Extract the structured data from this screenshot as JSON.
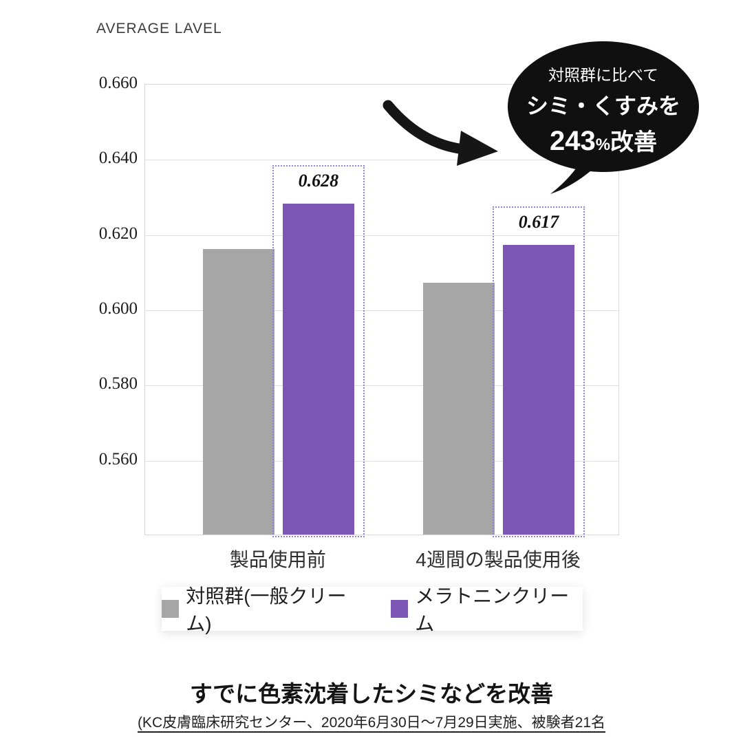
{
  "header": {
    "average_label": "AVERAGE LAVEL"
  },
  "chart_data": {
    "type": "bar",
    "title": "AVERAGE LAVEL",
    "categories": [
      "製品使用前",
      "4週間の製品使用後"
    ],
    "series": [
      {
        "name": "対照群(一般クリーム)",
        "color": "#a6a6a6",
        "values": [
          0.616,
          0.607
        ],
        "data_labels": [
          "",
          ""
        ],
        "highlighted": false
      },
      {
        "name": "メラトニンクリーム",
        "color": "#7d55b4",
        "values": [
          0.628,
          0.617
        ],
        "data_labels": [
          "0.628",
          "0.617"
        ],
        "highlighted": true
      }
    ],
    "yticks": [
      "0.660",
      "0.640",
      "0.620",
      "0.600",
      "0.580",
      "0.560"
    ],
    "ytick_values": [
      0.66,
      0.64,
      0.62,
      0.6,
      0.58,
      0.56
    ],
    "ylim": [
      0.54,
      0.66
    ],
    "grid": true,
    "legend_position": "bottom",
    "highlight_box_color": "#8c85d8",
    "annotation": "対照群に比べてシミ・くすみを243%改善"
  },
  "bubble": {
    "line1": "対照群に比べて",
    "line2": "シミ・くすみを",
    "value": "243",
    "unit": "%",
    "word": "改善"
  },
  "legend": {
    "items": [
      {
        "label": "対照群(一般クリーム)",
        "color": "#a6a6a6"
      },
      {
        "label": "メラトニンクリーム",
        "color": "#7d55b4"
      }
    ]
  },
  "footer": {
    "title": "すでに色素沈着したシミなどを改善",
    "caption": "(KC皮膚臨床研究センター、2020年6月30日〜7月29日実施、被験者21名"
  }
}
